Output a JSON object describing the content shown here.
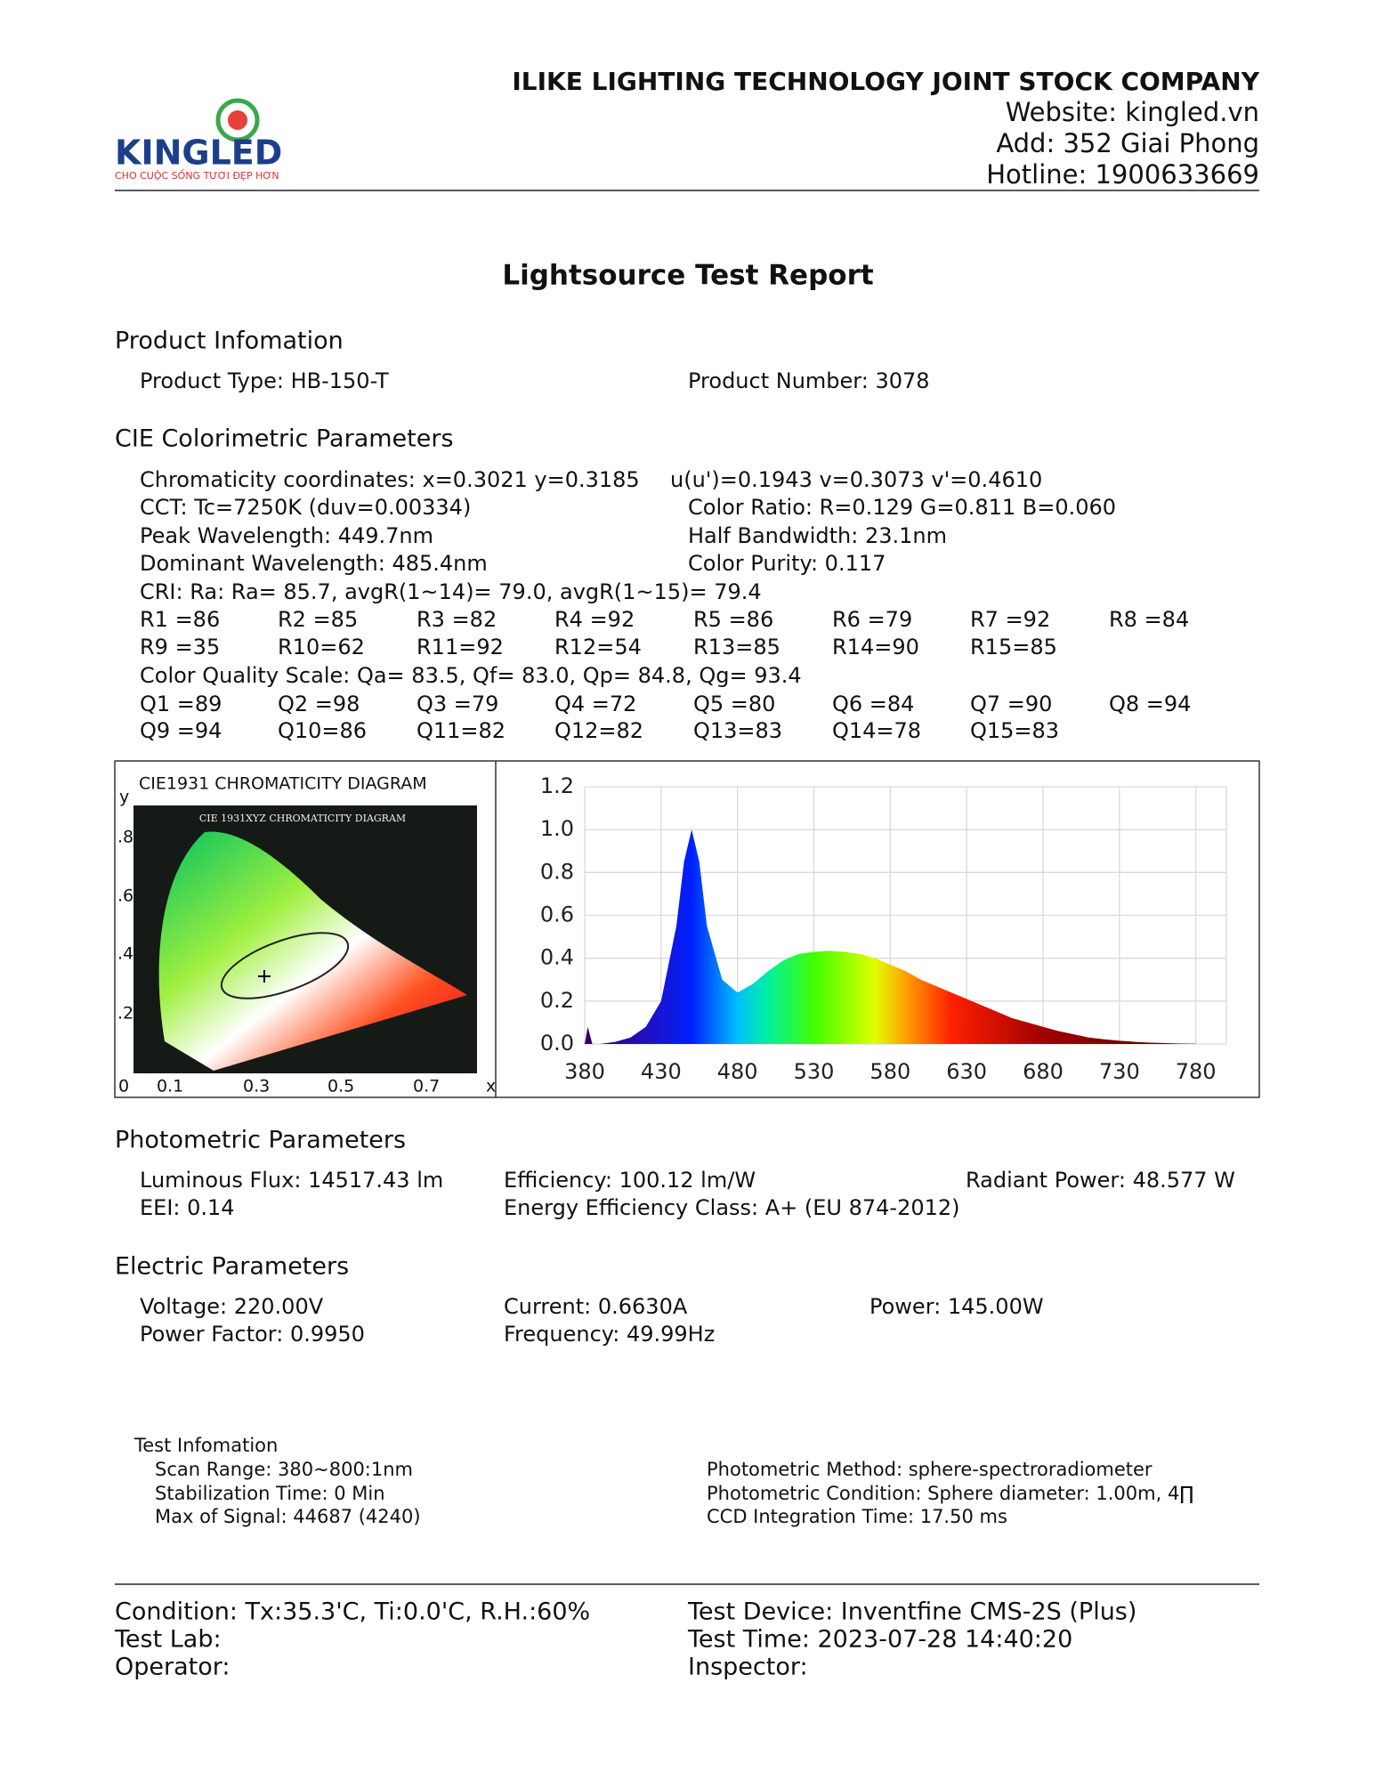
{
  "header": {
    "logo_text": "KINGLED",
    "logo_slogan": "CHO CUỘC SỐNG TƯƠI ĐẸP HƠN",
    "company": "ILIKE LIGHTING TECHNOLOGY JOINT STOCK COMPANY",
    "website": "Website: kingled.vn",
    "address": "Add: 352 Giai Phong",
    "hotline": "Hotline: 1900633669"
  },
  "title": "Lightsource Test Report",
  "product": {
    "heading": "Product Infomation",
    "type": "Product Type: HB-150-T",
    "number": "Product Number: 3078"
  },
  "colorimetric": {
    "heading": "CIE Colorimetric Parameters",
    "chromaticity": "Chromaticity coordinates: x=0.3021 y=0.3185",
    "uv": "u(u')=0.1943 v=0.3073 v'=0.4610",
    "cct": "CCT: Tc=7250K (duv=0.00334)",
    "color_ratio": "Color Ratio: R=0.129  G=0.811  B=0.060",
    "peak": "Peak Wavelength: 449.7nm",
    "half_bandwidth": "Half Bandwidth: 23.1nm",
    "dominant": "Dominant Wavelength: 485.4nm",
    "purity": "Color Purity: 0.117",
    "cri": "CRI: Ra: Ra= 85.7, avgR(1~14)= 79.0, avgR(1~15)= 79.4",
    "r_rows": [
      [
        "R1 =86",
        "R2 =85",
        "R3 =82",
        "R4 =92",
        "R5 =86",
        "R6 =79",
        "R7 =92",
        "R8 =84"
      ],
      [
        "R9 =35",
        "R10=62",
        "R11=92",
        "R12=54",
        "R13=85",
        "R14=90",
        "R15=85"
      ]
    ],
    "cqs": "Color Quality Scale: Qa= 83.5, Qf= 83.0, Qp= 84.8, Qg= 93.4",
    "q_rows": [
      [
        "Q1 =89",
        "Q2 =98",
        "Q3 =79",
        "Q4 =72",
        "Q5 =80",
        "Q6 =84",
        "Q7 =90",
        "Q8 =94"
      ],
      [
        "Q9 =94",
        "Q10=86",
        "Q11=82",
        "Q12=82",
        "Q13=83",
        "Q14=78",
        "Q15=83"
      ]
    ]
  },
  "cie_diagram": {
    "title": "CIE1931 CHROMATICITY DIAGRAM",
    "inner_title": "CIE 1931XYZ CHROMATICITY DIAGRAM",
    "y_label": "y",
    "x_label": "x",
    "y_tick_labels": [
      ".8",
      ".6",
      ".4",
      ".2"
    ],
    "x_tick_labels": [
      "0",
      "0.1",
      "0.3",
      "0.5",
      "0.7"
    ]
  },
  "chart_data": {
    "type": "area",
    "x": [
      380,
      382,
      385,
      390,
      400,
      410,
      420,
      430,
      440,
      445,
      450,
      455,
      460,
      470,
      480,
      490,
      500,
      510,
      520,
      530,
      540,
      550,
      560,
      570,
      580,
      590,
      600,
      610,
      620,
      630,
      640,
      650,
      660,
      670,
      680,
      690,
      700,
      710,
      720,
      730,
      740,
      750,
      760,
      770,
      780
    ],
    "values": [
      0.0,
      0.08,
      0.0,
      0.0,
      0.01,
      0.03,
      0.08,
      0.2,
      0.55,
      0.85,
      1.0,
      0.85,
      0.55,
      0.3,
      0.24,
      0.28,
      0.34,
      0.39,
      0.42,
      0.43,
      0.435,
      0.43,
      0.42,
      0.4,
      0.37,
      0.34,
      0.3,
      0.27,
      0.24,
      0.21,
      0.18,
      0.15,
      0.12,
      0.1,
      0.08,
      0.06,
      0.045,
      0.03,
      0.022,
      0.015,
      0.01,
      0.006,
      0.004,
      0.002,
      0.001
    ],
    "xlim": [
      380,
      800
    ],
    "xticks": [
      380,
      430,
      480,
      530,
      580,
      630,
      680,
      730,
      780
    ],
    "ylim": [
      0,
      1.2
    ],
    "yticks": [
      {
        "value": 0,
        "label": "0.0"
      },
      0.2,
      0.4,
      0.6,
      0.8,
      {
        "value": 1,
        "label": "1.0"
      },
      1.2
    ],
    "grid": true
  },
  "photometric": {
    "heading": "Photometric Parameters",
    "flux": "Luminous Flux: 14517.43 lm",
    "efficiency": "Efficiency: 100.12 lm/W",
    "radiant": "Radiant Power: 48.577 W",
    "eei": "EEI:  0.14",
    "energy_class": "Energy Efficiency Class: A+ (EU 874-2012)"
  },
  "electric": {
    "heading": "Electric Parameters",
    "voltage": "Voltage: 220.00V",
    "current": "Current: 0.6630A",
    "power": "Power: 145.00W",
    "power_factor": "Power Factor: 0.9950",
    "frequency": "Frequency: 49.99Hz"
  },
  "test_info": {
    "heading": "Test Infomation",
    "scan_range": "Scan Range: 380~800:1nm",
    "stabilization": "Stabilization Time: 0 Min",
    "max_signal": "Max of Signal: 44687 (4240)",
    "method": "Photometric Method: sphere-spectroradiometer",
    "condition": "Photometric Condition: Sphere diameter: 1.00m, 4∏",
    "ccd": "CCD Integration Time: 17.50 ms"
  },
  "footer": {
    "condition": "Condition: Tx:35.3'C, Ti:0.0'C, R.H.:60%",
    "device": "Test Device: Inventfine CMS-2S (Plus)",
    "lab": "Test Lab:",
    "time": "Test Time: 2023-07-28 14:40:20",
    "operator": "Operator:",
    "inspector": "Inspector:"
  }
}
